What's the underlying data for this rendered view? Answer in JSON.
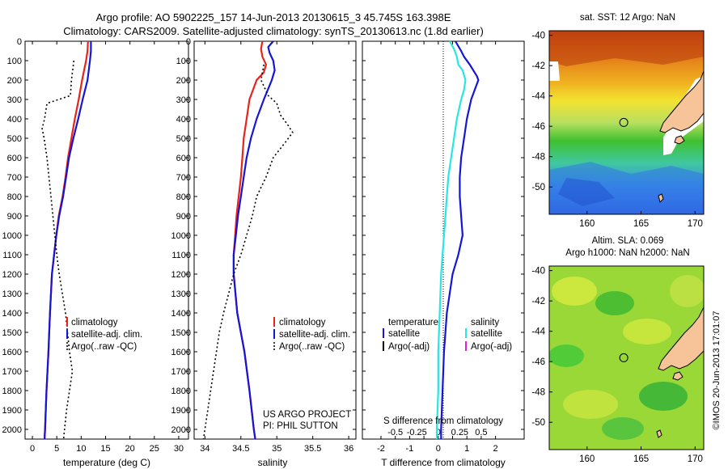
{
  "header": {
    "line1": "Argo profile: AO 5902225_157 14-Jun-2013 20130615_3 45.745S 163.398E",
    "line2": "Climatology: CARS2009. Satellite-adjusted climatology: synTS_20130613.nc (1.8d earlier)"
  },
  "colors": {
    "red": "#e8231c",
    "blue": "#1515d6",
    "cyan": "#28e6e6",
    "magenta": "#e020e0",
    "black": "#000000",
    "land": "#f7c49a"
  },
  "chart_data": [
    {
      "type": "line",
      "xlabel": "temperature (deg C)",
      "ylim": [
        2050,
        0
      ],
      "xlim": [
        -1.5,
        32
      ],
      "yticks": [
        0,
        100,
        200,
        300,
        400,
        500,
        600,
        700,
        800,
        900,
        1000,
        1100,
        1200,
        1300,
        1400,
        1500,
        1600,
        1700,
        1800,
        1900,
        2000
      ],
      "xticks": [
        0,
        5,
        10,
        15,
        20,
        25,
        30
      ],
      "legend": [
        "climatology",
        "satellite-adj. clim.",
        "Argo(..raw -QC)"
      ],
      "series": [
        {
          "name": "climatology",
          "color": "red",
          "style": "solid",
          "y": [
            0,
            50,
            100,
            200,
            300,
            400,
            500,
            600,
            700,
            800,
            900,
            1000,
            1200,
            1400,
            1600,
            1800,
            2000,
            2050
          ],
          "x": [
            11.4,
            11.3,
            11.0,
            10.2,
            9.5,
            8.7,
            8.0,
            7.3,
            6.8,
            6.2,
            5.4,
            4.9,
            4.0,
            3.6,
            3.3,
            2.9,
            2.6,
            2.5
          ]
        },
        {
          "name": "satellite-adj. clim.",
          "color": "blue",
          "style": "solid",
          "y": [
            0,
            50,
            100,
            200,
            300,
            400,
            500,
            600,
            700,
            800,
            900,
            1000,
            1200,
            1400,
            1600,
            1800,
            2000,
            2050
          ],
          "x": [
            12.0,
            12.0,
            11.8,
            11.3,
            10.3,
            9.4,
            8.4,
            7.5,
            6.9,
            6.3,
            5.5,
            4.9,
            4.0,
            3.6,
            3.3,
            2.9,
            2.6,
            2.5
          ]
        },
        {
          "name": "Argo(..raw -QC)",
          "color": "black",
          "style": "dotted",
          "y": [
            100,
            200,
            280,
            320,
            400,
            450,
            500,
            600,
            700,
            800,
            900,
            1000,
            1100,
            1200,
            1400,
            1600,
            1700,
            1800,
            1900,
            2000,
            2050
          ],
          "x": [
            8.5,
            8.0,
            7.8,
            3.0,
            2.5,
            2.0,
            2.4,
            3.0,
            3.4,
            3.8,
            4.2,
            4.6,
            5.0,
            5.5,
            6.8,
            7.6,
            8.2,
            7.6,
            7.0,
            6.6,
            6.4
          ]
        }
      ]
    },
    {
      "type": "line",
      "xlabel": "salinity",
      "ylim": [
        2050,
        0
      ],
      "xlim": [
        33.85,
        36.1
      ],
      "xticks": [
        34,
        34.5,
        35,
        35.5,
        36
      ],
      "legend": [
        "climatology",
        "satellite-adj. clim.",
        "Argo(..raw -QC)"
      ],
      "annotation": [
        "US ARGO PROJECT",
        "PI: PHIL SUTTON"
      ],
      "series": [
        {
          "name": "climatology",
          "color": "red",
          "style": "solid",
          "y": [
            0,
            40,
            80,
            120,
            160,
            200,
            300,
            400,
            500,
            600,
            700,
            800,
            900,
            1000,
            1100,
            1200,
            1400,
            1600,
            1800,
            2000,
            2050
          ],
          "x": [
            34.8,
            34.78,
            34.8,
            34.85,
            34.82,
            34.72,
            34.62,
            34.58,
            34.54,
            34.52,
            34.5,
            34.47,
            34.44,
            34.42,
            34.4,
            34.4,
            34.45,
            34.55,
            34.62,
            34.68,
            34.7
          ]
        },
        {
          "name": "satellite-adj. clim.",
          "color": "blue",
          "style": "solid",
          "y": [
            0,
            30,
            60,
            100,
            150,
            200,
            300,
            400,
            500,
            600,
            700,
            800,
            900,
            1000,
            1100,
            1200,
            1400,
            1600,
            1800,
            2000,
            2050
          ],
          "x": [
            34.95,
            34.88,
            34.9,
            34.95,
            34.97,
            34.93,
            34.82,
            34.72,
            34.64,
            34.58,
            34.54,
            34.5,
            34.46,
            34.43,
            34.4,
            34.4,
            34.45,
            34.55,
            34.62,
            34.68,
            34.7
          ]
        },
        {
          "name": "Argo(..raw -QC)",
          "color": "black",
          "style": "dotted",
          "y": [
            120,
            200,
            280,
            320,
            380,
            430,
            470,
            520,
            600,
            700,
            800,
            900,
            1000,
            1100,
            1200,
            1300,
            1400,
            1500,
            1600,
            1700,
            1800,
            1900,
            2000,
            2050
          ],
          "x": [
            34.82,
            34.78,
            34.88,
            35.0,
            35.05,
            35.15,
            35.22,
            35.12,
            34.95,
            34.85,
            34.72,
            34.66,
            34.58,
            34.5,
            34.4,
            34.33,
            34.26,
            34.2,
            34.16,
            34.12,
            34.08,
            34.04,
            34.0,
            33.98
          ]
        }
      ]
    },
    {
      "type": "line",
      "xlabel": "T difference from climatology",
      "xlabel_top": "S difference from climatology",
      "ylim": [
        2050,
        0
      ],
      "xlim": [
        -2.65,
        3.0
      ],
      "xticks": [
        -2,
        -1.5,
        -1,
        -0.5,
        0,
        0.5,
        1,
        1.5,
        2
      ],
      "xtick_labels": [
        "-2",
        "",
        "-1",
        "",
        "0",
        "",
        "1",
        "",
        "2"
      ],
      "xticks_top": [
        -0.5,
        -0.25,
        0,
        0.25,
        0.5
      ],
      "legend_temperature": [
        "temperature",
        "satellite",
        "Argo(-adj)"
      ],
      "legend_salinity": [
        "salinity",
        "satellite",
        "Argo(-adj)"
      ],
      "series": [
        {
          "name": "satellite",
          "group": "temperature",
          "color": "blue",
          "style": "solid",
          "y": [
            0,
            50,
            80,
            120,
            180,
            200,
            240,
            300,
            400,
            500,
            600,
            700,
            800,
            900,
            1000,
            1100,
            1200,
            1400,
            1600,
            1800,
            2000,
            2050
          ],
          "x": [
            0.6,
            0.8,
            0.9,
            1.1,
            1.35,
            1.4,
            1.3,
            1.15,
            1.0,
            0.9,
            0.8,
            0.75,
            0.75,
            0.8,
            0.85,
            0.7,
            0.5,
            0.3,
            0.2,
            0.15,
            0.1,
            0.1
          ]
        },
        {
          "name": "satellite",
          "group": "salinity",
          "color": "cyan",
          "style": "solid",
          "y": [
            0,
            40,
            80,
            120,
            150,
            200,
            250,
            300,
            400,
            500,
            600,
            700,
            800,
            900,
            1000,
            1100,
            1200,
            1400,
            1600,
            1800,
            2000,
            2050
          ],
          "x": [
            0.4,
            0.55,
            0.65,
            0.7,
            0.85,
            0.95,
            0.9,
            0.8,
            0.65,
            0.55,
            0.45,
            0.35,
            0.3,
            0.25,
            0.2,
            0.15,
            0.1,
            0.05,
            0.0,
            0.0,
            -0.05,
            -0.05
          ]
        }
      ]
    }
  ],
  "maps": [
    {
      "title": "sat. SST: 12 Argo: NaN",
      "xlim": [
        156.5,
        170.8
      ],
      "ylim": [
        -51.8,
        -39.7
      ],
      "xticks": [
        160,
        165,
        170
      ],
      "yticks": [
        -40,
        -42,
        -44,
        -46,
        -48,
        -50
      ],
      "marker_lon": 163.398,
      "marker_lat": -45.745
    },
    {
      "title_line1": "Altim. SLA: 0.069",
      "title_line2": "Argo h1000: NaN h2000: NaN",
      "xlim": [
        156.5,
        170.8
      ],
      "ylim": [
        -51.8,
        -39.7
      ],
      "xticks": [
        160,
        165,
        170
      ],
      "yticks": [
        -40,
        -42,
        -44,
        -46,
        -48,
        -50
      ],
      "marker_lon": 163.398,
      "marker_lat": -45.745
    }
  ],
  "side_stamp": "©IMOS 20-Jun-2013 17:01:07"
}
